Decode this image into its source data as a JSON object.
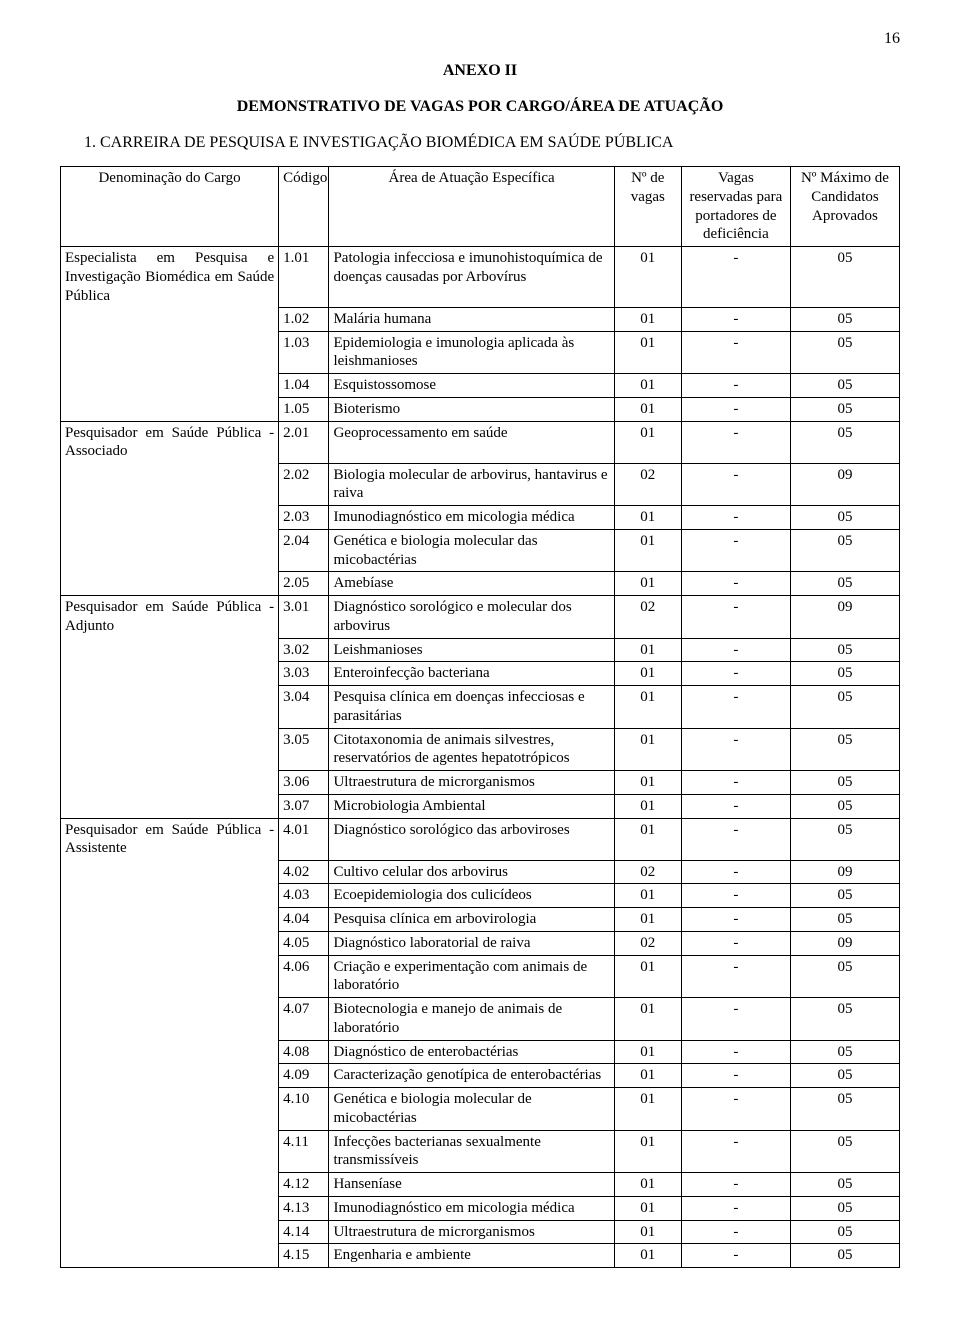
{
  "page_number": "16",
  "title1": "ANEXO II",
  "title2": "DEMONSTRATIVO DE VAGAS POR CARGO/ÁREA DE ATUAÇÃO",
  "section_title": "1. CARREIRA DE PESQUISA E INVESTIGAÇÃO BIOMÉDICA EM SAÚDE PÚBLICA",
  "headers": {
    "denom": "Denominação do Cargo",
    "codigo": "Código",
    "area": "Área de Atuação Específica",
    "vagas": "Nº de vagas",
    "reserv": "Vagas reservadas para portadores de deficiência",
    "max": "Nº Máximo de Candidatos Aprovados"
  },
  "groups": [
    {
      "denom": "Especialista em Pesquisa e Investigação Biomédica em Saúde Pública",
      "rows": [
        {
          "cod": "1.01",
          "area": "Patologia infecciosa e imunohistoquímica de doenças causadas por Arbovírus",
          "vagas": "01",
          "res": "-",
          "max": "05"
        },
        {
          "cod": "1.02",
          "area": "Malária humana",
          "vagas": "01",
          "res": "-",
          "max": "05"
        },
        {
          "cod": "1.03",
          "area": "Epidemiologia e imunologia aplicada às leishmanioses",
          "vagas": "01",
          "res": "-",
          "max": "05"
        },
        {
          "cod": "1.04",
          "area": "Esquistossomose",
          "vagas": "01",
          "res": "-",
          "max": "05"
        },
        {
          "cod": "1.05",
          "area": "Bioterismo",
          "vagas": "01",
          "res": "-",
          "max": "05"
        }
      ]
    },
    {
      "denom": "Pesquisador em Saúde Pública - Associado",
      "rows": [
        {
          "cod": "2.01",
          "area": "Geoprocessamento em saúde",
          "vagas": "01",
          "res": "-",
          "max": "05"
        },
        {
          "cod": "2.02",
          "area": "Biologia molecular de arbovirus, hantavirus e raiva",
          "vagas": "02",
          "res": "-",
          "max": "09"
        },
        {
          "cod": "2.03",
          "area": "Imunodiagnóstico em micologia médica",
          "vagas": "01",
          "res": "-",
          "max": "05"
        },
        {
          "cod": "2.04",
          "area": "Genética e biologia molecular das micobactérias",
          "vagas": "01",
          "res": "-",
          "max": "05"
        },
        {
          "cod": "2.05",
          "area": "Amebíase",
          "vagas": "01",
          "res": "-",
          "max": "05"
        }
      ]
    },
    {
      "denom": "Pesquisador em Saúde Pública - Adjunto",
      "rows": [
        {
          "cod": "3.01",
          "area": "Diagnóstico sorológico e molecular dos arbovirus",
          "vagas": "02",
          "res": "-",
          "max": "09"
        },
        {
          "cod": "3.02",
          "area": "Leishmanioses",
          "vagas": "01",
          "res": "-",
          "max": "05"
        },
        {
          "cod": "3.03",
          "area": "Enteroinfecção bacteriana",
          "vagas": "01",
          "res": "-",
          "max": "05"
        },
        {
          "cod": "3.04",
          "area": "Pesquisa clínica em doenças infecciosas e parasitárias",
          "vagas": "01",
          "res": "-",
          "max": "05"
        },
        {
          "cod": "3.05",
          "area": "Citotaxonomia de animais silvestres, reservatórios de agentes hepatotrópicos",
          "vagas": "01",
          "res": "-",
          "max": "05"
        },
        {
          "cod": "3.06",
          "area": "Ultraestrutura de microrganismos",
          "vagas": "01",
          "res": "-",
          "max": "05"
        },
        {
          "cod": "3.07",
          "area": "Microbiologia Ambiental",
          "vagas": "01",
          "res": "-",
          "max": "05"
        }
      ]
    },
    {
      "denom": "Pesquisador em Saúde Pública - Assistente",
      "rows": [
        {
          "cod": "4.01",
          "area": "Diagnóstico sorológico das arboviroses",
          "vagas": "01",
          "res": "-",
          "max": "05"
        },
        {
          "cod": "4.02",
          "area": "Cultivo celular dos arbovirus",
          "vagas": "02",
          "res": "-",
          "max": "09"
        },
        {
          "cod": "4.03",
          "area": "Ecoepidemiologia dos culicídeos",
          "vagas": "01",
          "res": "-",
          "max": "05"
        },
        {
          "cod": "4.04",
          "area": "Pesquisa clínica em arbovirologia",
          "vagas": "01",
          "res": "-",
          "max": "05"
        },
        {
          "cod": "4.05",
          "area": "Diagnóstico laboratorial de raiva",
          "vagas": "02",
          "res": "-",
          "max": "09"
        },
        {
          "cod": "4.06",
          "area": "Criação e experimentação com animais de laboratório",
          "vagas": "01",
          "res": "-",
          "max": "05"
        },
        {
          "cod": "4.07",
          "area": "Biotecnologia e manejo de animais de laboratório",
          "vagas": "01",
          "res": "-",
          "max": "05"
        },
        {
          "cod": "4.08",
          "area": "Diagnóstico de enterobactérias",
          "vagas": "01",
          "res": "-",
          "max": "05"
        },
        {
          "cod": "4.09",
          "area": "Caracterização genotípica de enterobactérias",
          "vagas": "01",
          "res": "-",
          "max": "05"
        },
        {
          "cod": "4.10",
          "area": "Genética e biologia molecular de micobactérias",
          "vagas": "01",
          "res": "-",
          "max": "05"
        },
        {
          "cod": "4.11",
          "area": "Infecções bacterianas sexualmente transmissíveis",
          "vagas": "01",
          "res": "-",
          "max": "05"
        },
        {
          "cod": "4.12",
          "area": "Hanseníase",
          "vagas": "01",
          "res": "-",
          "max": "05"
        },
        {
          "cod": "4.13",
          "area": "Imunodiagnóstico em micologia médica",
          "vagas": "01",
          "res": "-",
          "max": "05"
        },
        {
          "cod": "4.14",
          "area": "Ultraestrutura de microrganismos",
          "vagas": "01",
          "res": "-",
          "max": "05"
        },
        {
          "cod": "4.15",
          "area": "Engenharia e ambiente",
          "vagas": "01",
          "res": "-",
          "max": "05"
        }
      ]
    }
  ]
}
